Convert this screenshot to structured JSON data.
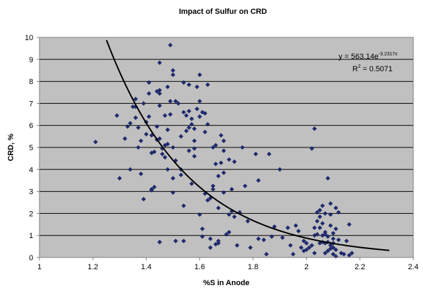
{
  "chart_data": {
    "type": "scatter",
    "title": "Impact of Sulfur on CRD",
    "xlabel": "%S in Anode",
    "ylabel": "CRD, %",
    "xlim": [
      1,
      2.4
    ],
    "ylim": [
      0,
      10
    ],
    "x_ticks": [
      "1",
      "1.2",
      "1.4",
      "1.6",
      "1.8",
      "2",
      "2.2",
      "2.4"
    ],
    "y_ticks": [
      "0",
      "1",
      "2",
      "3",
      "4",
      "5",
      "6",
      "7",
      "8",
      "9",
      "10"
    ],
    "grid": "horizontal",
    "plot_background": "#c0c0c0",
    "marker_color": "#1f2a6b",
    "trendline": {
      "type": "exponential",
      "a": 563.14,
      "b": -3.2317,
      "x_range": [
        1.1,
        2.31
      ],
      "equation_prefix": "y = 563.14e",
      "equation_exponent": "-3.2317x",
      "r2_prefix": "R",
      "r2_sup": "2",
      "r2_suffix": " = 0.5071"
    },
    "series": [
      {
        "points": [
          [
            1.21,
            5.25
          ],
          [
            1.29,
            6.45
          ],
          [
            1.3,
            3.6
          ],
          [
            1.32,
            5.4
          ],
          [
            1.33,
            5.95
          ],
          [
            1.34,
            6.1
          ],
          [
            1.34,
            4.0
          ],
          [
            1.35,
            6.85
          ],
          [
            1.36,
            6.35
          ],
          [
            1.36,
            7.2
          ],
          [
            1.36,
            6.85
          ],
          [
            1.37,
            5.0
          ],
          [
            1.37,
            5.9
          ],
          [
            1.38,
            3.8
          ],
          [
            1.38,
            5.3
          ],
          [
            1.39,
            2.65
          ],
          [
            1.39,
            7.0
          ],
          [
            1.4,
            6.15
          ],
          [
            1.4,
            5.6
          ],
          [
            1.41,
            7.95
          ],
          [
            1.41,
            7.45
          ],
          [
            1.41,
            6.4
          ],
          [
            1.42,
            3.05
          ],
          [
            1.42,
            4.75
          ],
          [
            1.42,
            3.1
          ],
          [
            1.42,
            5.55
          ],
          [
            1.43,
            4.8
          ],
          [
            1.43,
            3.2
          ],
          [
            1.44,
            7.55
          ],
          [
            1.44,
            5.95
          ],
          [
            1.44,
            5.35
          ],
          [
            1.45,
            8.85
          ],
          [
            1.45,
            7.45
          ],
          [
            1.45,
            7.6
          ],
          [
            1.45,
            6.9
          ],
          [
            1.45,
            5.4
          ],
          [
            1.45,
            0.7
          ],
          [
            1.45,
            0.7
          ],
          [
            1.46,
            4.95
          ],
          [
            1.46,
            4.7
          ],
          [
            1.47,
            5.1
          ],
          [
            1.47,
            4.55
          ],
          [
            1.47,
            6.45
          ],
          [
            1.48,
            7.75
          ],
          [
            1.48,
            5.8
          ],
          [
            1.48,
            4.0
          ],
          [
            1.48,
            5.15
          ],
          [
            1.49,
            9.65
          ],
          [
            1.49,
            7.1
          ],
          [
            1.49,
            6.5
          ],
          [
            1.5,
            8.5
          ],
          [
            1.5,
            8.3
          ],
          [
            1.5,
            5.0
          ],
          [
            1.5,
            3.6
          ],
          [
            1.5,
            2.95
          ],
          [
            1.51,
            4.4
          ],
          [
            1.51,
            0.75
          ],
          [
            1.51,
            7.1
          ],
          [
            1.52,
            7.0
          ],
          [
            1.53,
            4.0
          ],
          [
            1.53,
            3.75
          ],
          [
            1.53,
            5.5
          ],
          [
            1.54,
            7.95
          ],
          [
            1.54,
            2.35
          ],
          [
            1.54,
            0.75
          ],
          [
            1.54,
            6.6
          ],
          [
            1.55,
            6.45
          ],
          [
            1.55,
            5.75
          ],
          [
            1.56,
            4.85
          ],
          [
            1.56,
            5.9
          ],
          [
            1.56,
            7.85
          ],
          [
            1.56,
            6.65
          ],
          [
            1.57,
            3.35
          ],
          [
            1.57,
            6.3
          ],
          [
            1.57,
            6.05
          ],
          [
            1.58,
            4.95
          ],
          [
            1.58,
            4.6
          ],
          [
            1.58,
            5.85
          ],
          [
            1.58,
            5.3
          ],
          [
            1.59,
            7.75
          ],
          [
            1.59,
            6.75
          ],
          [
            1.6,
            8.3
          ],
          [
            1.6,
            6.4
          ],
          [
            1.6,
            7.1
          ],
          [
            1.6,
            1.95
          ],
          [
            1.61,
            1.3
          ],
          [
            1.61,
            0.95
          ],
          [
            1.61,
            6.6
          ],
          [
            1.62,
            6.55
          ],
          [
            1.62,
            5.7
          ],
          [
            1.62,
            2.9
          ],
          [
            1.63,
            7.85
          ],
          [
            1.63,
            6.05
          ],
          [
            1.63,
            2.6
          ],
          [
            1.64,
            2.7
          ],
          [
            1.64,
            0.45
          ],
          [
            1.64,
            0.85
          ],
          [
            1.65,
            3.25
          ],
          [
            1.65,
            3.1
          ],
          [
            1.65,
            5.0
          ],
          [
            1.66,
            0.6
          ],
          [
            1.66,
            5.1
          ],
          [
            1.66,
            4.25
          ],
          [
            1.67,
            0.65
          ],
          [
            1.67,
            2.25
          ],
          [
            1.67,
            3.7
          ],
          [
            1.67,
            0.75
          ],
          [
            1.68,
            5.55
          ],
          [
            1.68,
            4.3
          ],
          [
            1.69,
            3.85
          ],
          [
            1.69,
            2.95
          ],
          [
            1.69,
            4.85
          ],
          [
            1.69,
            5.3
          ],
          [
            1.7,
            1.05
          ],
          [
            1.71,
            4.45
          ],
          [
            1.71,
            1.95
          ],
          [
            1.71,
            1.15
          ],
          [
            1.72,
            3.1
          ],
          [
            1.72,
            2.1
          ],
          [
            1.73,
            4.35
          ],
          [
            1.73,
            1.85
          ],
          [
            1.74,
            0.55
          ],
          [
            1.75,
            2.05
          ],
          [
            1.76,
            5.0
          ],
          [
            1.77,
            3.25
          ],
          [
            1.78,
            1.65
          ],
          [
            1.79,
            0.45
          ],
          [
            1.81,
            4.7
          ],
          [
            1.82,
            0.85
          ],
          [
            1.82,
            3.5
          ],
          [
            1.84,
            0.8
          ],
          [
            1.85,
            0.15
          ],
          [
            1.86,
            4.7
          ],
          [
            1.87,
            0.95
          ],
          [
            1.88,
            1.4
          ],
          [
            1.9,
            4.0
          ],
          [
            1.91,
            0.9
          ],
          [
            1.93,
            1.35
          ],
          [
            1.94,
            0.55
          ],
          [
            1.95,
            0.15
          ],
          [
            1.96,
            1.45
          ],
          [
            1.97,
            1.2
          ],
          [
            1.98,
            0.45
          ],
          [
            1.99,
            0.3
          ],
          [
            1.99,
            0.75
          ],
          [
            2.0,
            0.35
          ],
          [
            2.0,
            0.65
          ],
          [
            2.01,
            0.45
          ],
          [
            2.02,
            4.95
          ],
          [
            2.02,
            0.55
          ],
          [
            2.03,
            5.85
          ],
          [
            2.03,
            0.2
          ],
          [
            2.03,
            1.35
          ],
          [
            2.03,
            1.0
          ],
          [
            2.04,
            1.65
          ],
          [
            2.04,
            1.05
          ],
          [
            2.04,
            2.05
          ],
          [
            2.05,
            1.35
          ],
          [
            2.05,
            0.65
          ],
          [
            2.05,
            1.85
          ],
          [
            2.05,
            2.15
          ],
          [
            2.06,
            2.35
          ],
          [
            2.06,
            1.55
          ],
          [
            2.06,
            1.0
          ],
          [
            2.06,
            0.7
          ],
          [
            2.07,
            2.0
          ],
          [
            2.07,
            0.2
          ],
          [
            2.07,
            1.15
          ],
          [
            2.07,
            0.65
          ],
          [
            2.07,
            1.05
          ],
          [
            2.08,
            3.6
          ],
          [
            2.08,
            0.7
          ],
          [
            2.08,
            0.3
          ],
          [
            2.08,
            0.95
          ],
          [
            2.09,
            0.4
          ],
          [
            2.09,
            1.45
          ],
          [
            2.09,
            1.95
          ],
          [
            2.09,
            2.45
          ],
          [
            2.09,
            0.55
          ],
          [
            2.1,
            1.1
          ],
          [
            2.1,
            0.65
          ],
          [
            2.1,
            0.85
          ],
          [
            2.1,
            0.15
          ],
          [
            2.1,
            0.45
          ],
          [
            2.11,
            1.3
          ],
          [
            2.11,
            0.05
          ],
          [
            2.11,
            0.35
          ],
          [
            2.11,
            2.25
          ],
          [
            2.12,
            2.05
          ],
          [
            2.12,
            0.8
          ],
          [
            2.13,
            0.2
          ],
          [
            2.14,
            0.15
          ],
          [
            2.15,
            0.75
          ],
          [
            2.16,
            0.1
          ],
          [
            2.16,
            1.5
          ],
          [
            2.17,
            0.2
          ]
        ]
      }
    ]
  }
}
